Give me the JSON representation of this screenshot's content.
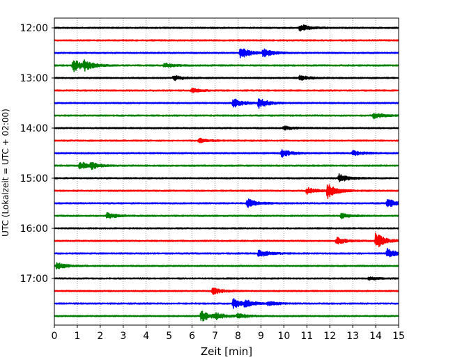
{
  "chart_data": {
    "type": "line",
    "title": "",
    "xlabel": "Zeit  [min]",
    "ylabel": "UTC (Lokalzeit = UTC + 02:00)",
    "xlim": [
      0,
      15
    ],
    "x_ticks": [
      "0",
      "1",
      "2",
      "3",
      "4",
      "5",
      "6",
      "7",
      "8",
      "9",
      "10",
      "11",
      "12",
      "13",
      "14",
      "15"
    ],
    "y_ticks": [
      "12:00",
      "13:00",
      "14:00",
      "15:00",
      "16:00",
      "17:00"
    ],
    "grid": "vertical dotted lines at each minute",
    "legend": "none",
    "trace_interval_min": 15,
    "color_cycle": [
      "#000000",
      "#ff0000",
      "#0000ff",
      "#008000"
    ],
    "series": [
      {
        "start": "12:00",
        "color": "#000000",
        "events": [
          [
            10.7,
            0.9
          ]
        ]
      },
      {
        "start": "12:15",
        "color": "#ff0000",
        "events": []
      },
      {
        "start": "12:30",
        "color": "#0000ff",
        "events": [
          [
            8.1,
            1.4
          ],
          [
            9.1,
            1.0
          ]
        ]
      },
      {
        "start": "12:45",
        "color": "#008000",
        "events": [
          [
            0.8,
            1.6
          ],
          [
            1.3,
            1.0
          ],
          [
            4.8,
            0.5
          ]
        ]
      },
      {
        "start": "13:00",
        "color": "#000000",
        "events": [
          [
            5.2,
            0.6
          ],
          [
            10.7,
            0.6
          ]
        ]
      },
      {
        "start": "13:15",
        "color": "#ff0000",
        "events": [
          [
            6.0,
            0.5
          ]
        ]
      },
      {
        "start": "13:30",
        "color": "#0000ff",
        "events": [
          [
            7.8,
            1.1
          ],
          [
            8.9,
            1.2
          ]
        ]
      },
      {
        "start": "13:45",
        "color": "#008000",
        "events": [
          [
            13.9,
            0.8
          ]
        ]
      },
      {
        "start": "14:00",
        "color": "#000000",
        "events": [
          [
            10.0,
            0.5
          ]
        ]
      },
      {
        "start": "14:15",
        "color": "#ff0000",
        "events": [
          [
            6.3,
            0.5
          ]
        ]
      },
      {
        "start": "14:30",
        "color": "#0000ff",
        "events": [
          [
            9.9,
            0.9
          ],
          [
            13.0,
            0.6
          ]
        ]
      },
      {
        "start": "14:45",
        "color": "#008000",
        "events": [
          [
            1.1,
            1.0
          ],
          [
            1.6,
            0.6
          ]
        ]
      },
      {
        "start": "15:00",
        "color": "#000000",
        "events": [
          [
            12.4,
            1.0
          ]
        ]
      },
      {
        "start": "15:15",
        "color": "#ff0000",
        "events": [
          [
            11.0,
            0.8
          ],
          [
            11.9,
            1.8
          ]
        ]
      },
      {
        "start": "15:30",
        "color": "#0000ff",
        "events": [
          [
            8.4,
            1.1
          ],
          [
            14.5,
            1.1
          ]
        ]
      },
      {
        "start": "15:45",
        "color": "#008000",
        "events": [
          [
            2.3,
            0.8
          ],
          [
            12.5,
            0.6
          ]
        ]
      },
      {
        "start": "16:00",
        "color": "#000000",
        "events": []
      },
      {
        "start": "16:15",
        "color": "#ff0000",
        "events": [
          [
            12.3,
            0.8
          ],
          [
            14.0,
            2.0
          ]
        ]
      },
      {
        "start": "16:30",
        "color": "#0000ff",
        "events": [
          [
            8.9,
            1.0
          ],
          [
            14.5,
            1.1
          ]
        ]
      },
      {
        "start": "16:45",
        "color": "#008000",
        "events": [
          [
            0.1,
            0.8
          ]
        ]
      },
      {
        "start": "17:00",
        "color": "#000000",
        "events": [
          [
            13.7,
            0.4
          ]
        ]
      },
      {
        "start": "17:15",
        "color": "#ff0000",
        "events": [
          [
            6.9,
            0.8
          ]
        ]
      },
      {
        "start": "17:30",
        "color": "#0000ff",
        "events": [
          [
            7.8,
            1.2
          ],
          [
            8.3,
            0.7
          ],
          [
            9.3,
            0.5
          ]
        ]
      },
      {
        "start": "17:45",
        "color": "#008000",
        "events": [
          [
            6.4,
            1.3
          ],
          [
            7.0,
            0.7
          ],
          [
            8.0,
            0.6
          ]
        ]
      }
    ]
  }
}
